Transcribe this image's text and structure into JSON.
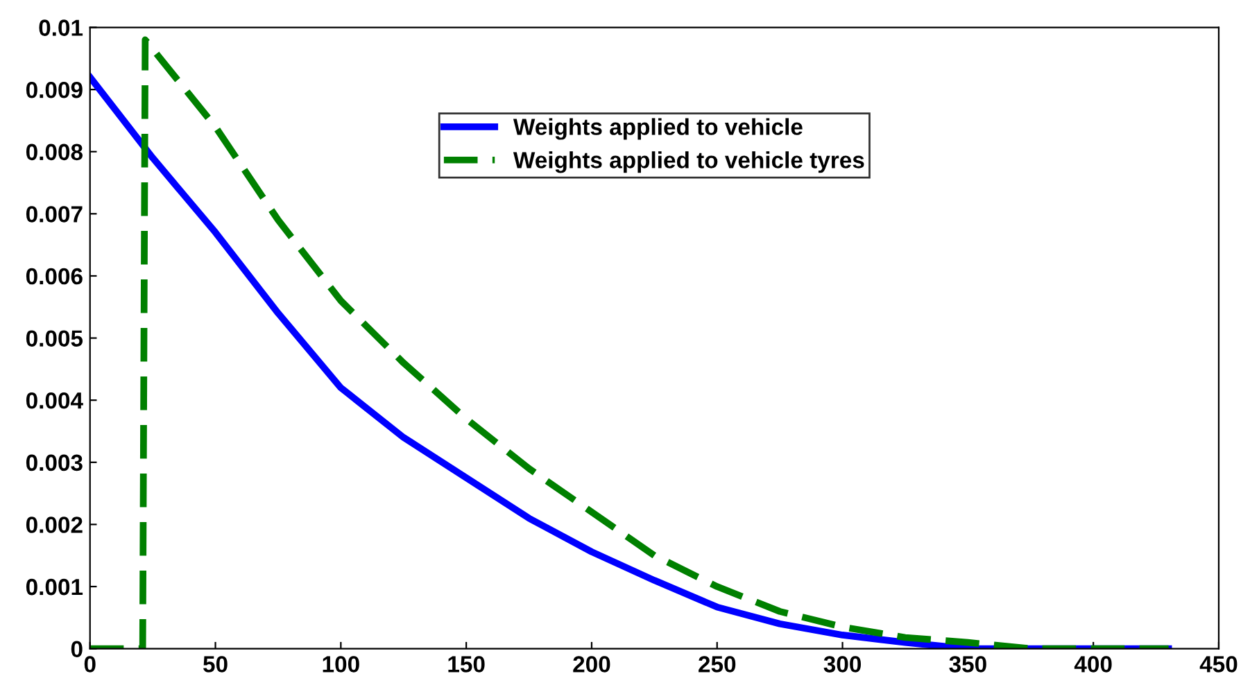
{
  "chart_data": {
    "type": "line",
    "xlim": [
      0,
      450
    ],
    "ylim": [
      0,
      0.01
    ],
    "xticks": [
      0,
      50,
      100,
      150,
      200,
      250,
      300,
      350,
      400,
      450
    ],
    "yticks": [
      0,
      0.001,
      0.002,
      0.003,
      0.004,
      0.005,
      0.006,
      0.007,
      0.008,
      0.009,
      0.01
    ],
    "grid": false,
    "legend": "top",
    "marker": "none",
    "series": [
      {
        "name": "Weights applied to vehicle",
        "color": "#0000ff",
        "line_style": "solid",
        "x": [
          0,
          25,
          50,
          75,
          100,
          125,
          150,
          175,
          200,
          225,
          250,
          275,
          300,
          325,
          350,
          375,
          400,
          430
        ],
        "values": [
          0.0092,
          0.0079,
          0.0067,
          0.0054,
          0.0042,
          0.0034,
          0.00275,
          0.0021,
          0.00156,
          0.0011,
          0.00067,
          0.0004,
          0.00022,
          0.0001,
          0,
          0,
          0,
          0
        ]
      },
      {
        "name": "Weights applied to vehicle tyres",
        "color": "#008000",
        "line_style": "dashed",
        "x": [
          0,
          21,
          22,
          50,
          75,
          100,
          125,
          150,
          175,
          200,
          225,
          250,
          275,
          300,
          325,
          350,
          375,
          400,
          430
        ],
        "values": [
          0,
          0,
          0.0098,
          0.0084,
          0.0069,
          0.0056,
          0.0046,
          0.0037,
          0.0029,
          0.0022,
          0.0015,
          0.001,
          0.0006,
          0.00035,
          0.00018,
          0.0001,
          0,
          0,
          0
        ]
      }
    ]
  }
}
